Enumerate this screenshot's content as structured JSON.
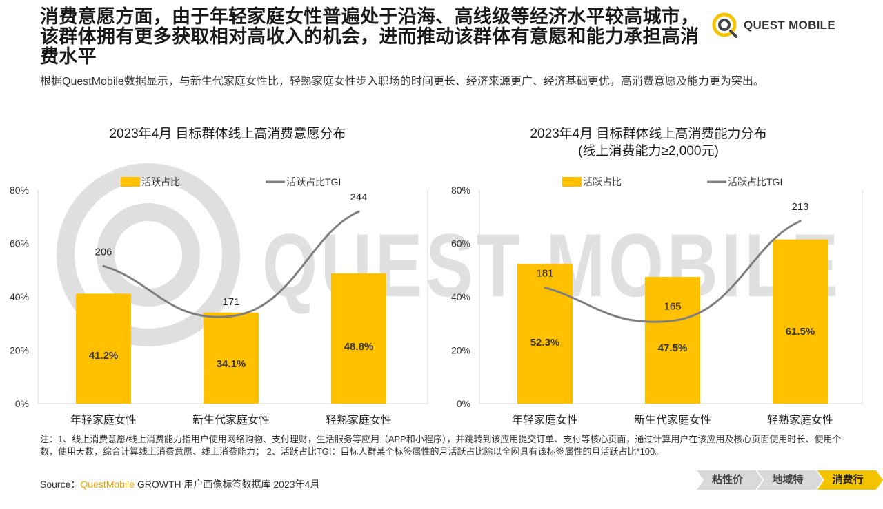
{
  "header": {
    "headline": "消费意愿方面，由于年轻家庭女性普遍处于沿海、高线级等经济水平较高城市，该群体拥有更多获取相对高收入的机会，进而推动该群体有意愿和能力承担高消费水平",
    "subtext": "根据QuestMobile数据显示，与新生代家庭女性比，轻熟家庭女性步入职场的时间更长、经济来源更广、经济基础更优，高消费意愿及能力更为突出。",
    "logo_text": "QUEST MOBILE"
  },
  "watermark_text": "QUEST MOBILE",
  "colors": {
    "bar": "#FFC000",
    "bar_dark": "#F3B300",
    "line": "#7F7F7F",
    "accent": "#F5C400"
  },
  "chart_data": [
    {
      "type": "bar",
      "title": "2023年4月 目标群体线上高消费意愿分布",
      "subtitle": "",
      "categories": [
        "年轻家庭女性",
        "新生代家庭女性",
        "轻熟家庭女性"
      ],
      "series": [
        {
          "name": "活跃占比",
          "type": "bar",
          "values": [
            41.2,
            34.1,
            48.8
          ],
          "labels": [
            "41.2%",
            "34.1%",
            "48.8%"
          ]
        },
        {
          "name": "活跃占比TGI",
          "type": "line",
          "values": [
            206,
            171,
            244
          ],
          "labels": [
            "206",
            "171",
            "244"
          ]
        }
      ],
      "yticks": [
        "0%",
        "20%",
        "40%",
        "60%",
        "80%"
      ],
      "ylim": [
        0,
        80
      ],
      "legend": "top",
      "grid": false
    },
    {
      "type": "bar",
      "title": "2023年4月 目标群体线上高消费能力分布",
      "subtitle": "(线上消费能力≥2,000元)",
      "categories": [
        "年轻家庭女性",
        "新生代家庭女性",
        "轻熟家庭女性"
      ],
      "series": [
        {
          "name": "活跃占比",
          "type": "bar",
          "values": [
            52.3,
            47.5,
            61.5
          ],
          "labels": [
            "52.3%",
            "47.5%",
            "61.5%"
          ]
        },
        {
          "name": "活跃占比TGI",
          "type": "line",
          "values": [
            181,
            165,
            213
          ],
          "labels": [
            "181",
            "165",
            "213"
          ]
        }
      ],
      "yticks": [
        "0%",
        "20%",
        "40%",
        "60%",
        "80%"
      ],
      "ylim": [
        0,
        80
      ],
      "legend": "top",
      "grid": false
    }
  ],
  "footnote": "注：1、线上消费意愿/线上消费能力指用户使用网络购物、支付理财，生活服务等应用（APP和小程序），并跳转到该应用提交订单、支付等核心页面，通过计算用户在该应用及核心页面使用时长、使用个数，使用天数，综合计算线上消费意愿、线上消费能力； 2、活跃占比TGI：目标人群某个标签属性的月活跃占比除以全网具有该标签属性的月活跃占比*100。",
  "source": {
    "prefix": "Source：",
    "brand": "QuestMobile",
    "rest": " GROWTH 用户画像标签数据库 2023年4月"
  },
  "nav": {
    "items": [
      "粘性价值",
      "地域特征",
      "消费行为"
    ],
    "active_index": 2
  }
}
